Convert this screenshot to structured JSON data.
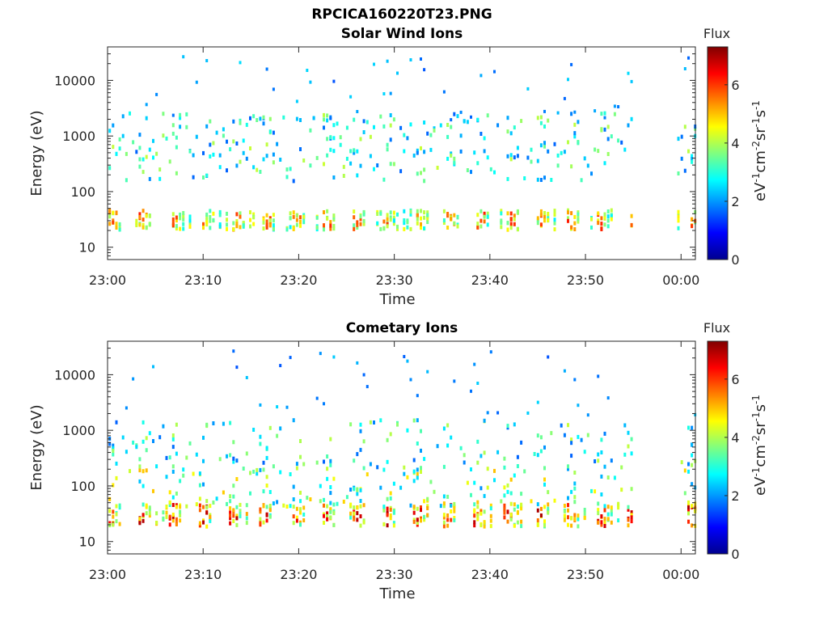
{
  "figure_title": "RPCICA160220T23.PNG",
  "chart_data": [
    {
      "type": "heatmap",
      "title": "Solar Wind Ions",
      "xlabel": "Time",
      "ylabel": "Energy (eV)",
      "yscale": "log",
      "ylim": [
        6,
        40000
      ],
      "xticks": [
        "23:00",
        "23:10",
        "23:20",
        "23:30",
        "23:40",
        "23:50",
        "00:00"
      ],
      "xlim_minutes": [
        0,
        61.5
      ],
      "yticks": [
        "10",
        "100",
        "1000",
        "10000"
      ],
      "colorbar": {
        "title": "Flux",
        "label": "eV-1cm-2sr-1s-1",
        "range": [
          0,
          7.3
        ],
        "ticks": [
          "0",
          "2",
          "4",
          "6"
        ]
      },
      "data_gap_minutes": [
        55,
        59.5
      ],
      "low_band": {
        "energy_range_eV": [
          20,
          45
        ],
        "peak_flux": 6.2
      },
      "high_band": {
        "energy_range_eV": [
          150,
          2500
        ],
        "peak_flux": 4.5
      },
      "colormap": "jet"
    },
    {
      "type": "heatmap",
      "title": "Cometary Ions",
      "xlabel": "Time",
      "ylabel": "Energy (eV)",
      "yscale": "log",
      "ylim": [
        6,
        40000
      ],
      "xticks": [
        "23:00",
        "23:10",
        "23:20",
        "23:30",
        "23:40",
        "23:50",
        "00:00"
      ],
      "xlim_minutes": [
        0,
        61.5
      ],
      "yticks": [
        "10",
        "100",
        "1000",
        "10000"
      ],
      "colorbar": {
        "title": "Flux",
        "label": "eV-1cm-2sr-1s-1",
        "range": [
          0,
          7.3
        ],
        "ticks": [
          "0",
          "2",
          "4",
          "6"
        ]
      },
      "data_gap_minutes": [
        55,
        59.5
      ],
      "low_band": {
        "energy_range_eV": [
          18,
          45
        ],
        "peak_flux": 7.0
      },
      "high_band": {
        "energy_range_eV": [
          40,
          1500
        ],
        "peak_flux": 4.5
      },
      "colormap": "jet"
    }
  ]
}
